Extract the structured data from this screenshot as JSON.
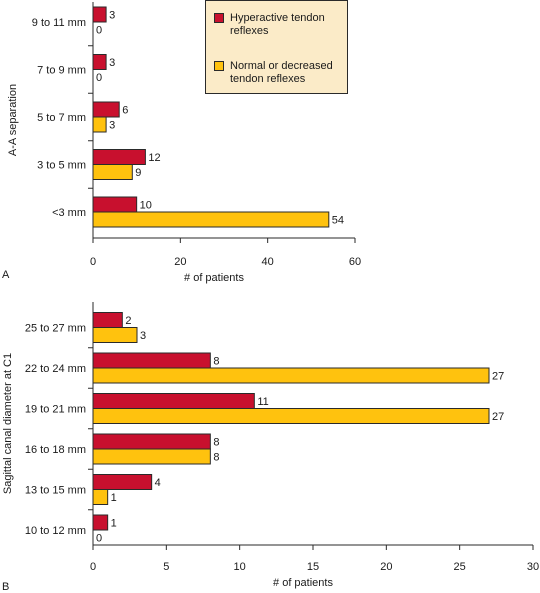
{
  "colors": {
    "hyperactive": "#c8102e",
    "normal": "#ffc20e",
    "legend_bg": "#fbebc8",
    "axis": "#2a2a2a"
  },
  "legend": {
    "hyperactive_label": "Hyperactive tendon reflexes",
    "normal_label": "Normal or decreased tendon reflexes"
  },
  "chart_data": [
    {
      "type": "bar",
      "orientation": "horizontal",
      "panel_label": "A",
      "ylabel": "A-A separation",
      "xlabel": "# of patients",
      "categories": [
        "9 to 11 mm",
        "7 to 9 mm",
        "5 to 7 mm",
        "3 to 5 mm",
        "<3 mm"
      ],
      "series": [
        {
          "name": "Hyperactive tendon reflexes",
          "values": [
            3,
            3,
            6,
            12,
            10
          ]
        },
        {
          "name": "Normal or decreased tendon reflexes",
          "values": [
            0,
            0,
            3,
            9,
            54
          ]
        }
      ],
      "xlim": [
        0,
        60
      ],
      "xticks": [
        0,
        20,
        40,
        60
      ],
      "grid": false,
      "legend_position": "top-right"
    },
    {
      "type": "bar",
      "orientation": "horizontal",
      "panel_label": "B",
      "ylabel": "Sagittal canal diameter at C1",
      "xlabel": "# of patients",
      "categories": [
        "25 to 27 mm",
        "22 to 24 mm",
        "19 to 21 mm",
        "16 to 18 mm",
        "13 to 15 mm",
        "10 to 12 mm"
      ],
      "series": [
        {
          "name": "Hyperactive tendon reflexes",
          "values": [
            2,
            8,
            11,
            8,
            4,
            1
          ]
        },
        {
          "name": "Normal or decreased tendon reflexes",
          "values": [
            3,
            27,
            27,
            8,
            1,
            0
          ]
        }
      ],
      "xlim": [
        0,
        30
      ],
      "xticks": [
        0,
        5,
        10,
        15,
        20,
        25,
        30
      ],
      "grid": false
    }
  ]
}
